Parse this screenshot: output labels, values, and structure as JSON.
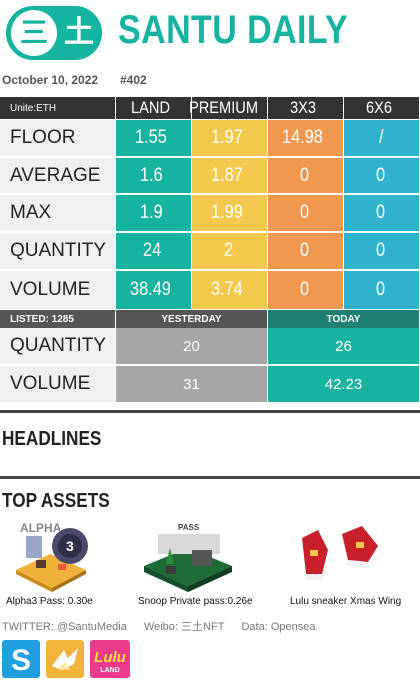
{
  "logo": {
    "char1": "三",
    "char2": "土"
  },
  "brand": "SANTU DAILY",
  "date": "October 10, 2022",
  "issue": "#402",
  "table": {
    "unit_label": "Unite:ETH",
    "columns": [
      "LAND",
      "PREMIUM",
      "3X3",
      "6X6"
    ],
    "rows": [
      {
        "label": "FLOOR",
        "values": [
          "1.55",
          "1.97",
          "14.98",
          "/"
        ]
      },
      {
        "label": "AVERAGE",
        "values": [
          "1.6",
          "1.87",
          "0",
          "0"
        ]
      },
      {
        "label": "MAX",
        "values": [
          "1.9",
          "1.99",
          "0",
          "0"
        ]
      },
      {
        "label": "QUANTITY",
        "values": [
          "24",
          "2",
          "0",
          "0"
        ]
      },
      {
        "label": "VOLUME",
        "values": [
          "38.49",
          "3.74",
          "0",
          "0"
        ]
      }
    ],
    "colors": {
      "land": "#16b3a0",
      "premium": "#f2c94c",
      "x3": "#f0984f",
      "x6": "#30b3cc"
    }
  },
  "listed": {
    "label": "LISTED: 1285",
    "yesterday_label": "YESTERDAY",
    "today_label": "TODAY",
    "rows": [
      {
        "label": "QUANTITY",
        "yesterday": "20",
        "today": "26"
      },
      {
        "label": "VOLUME",
        "yesterday": "31",
        "today": "42.23"
      }
    ]
  },
  "headlines": {
    "title": "HEADLINES"
  },
  "top_assets": {
    "title": "TOP ASSETS",
    "items": [
      {
        "caption": "Alpha3 Pass: 0.30e",
        "image_text": "ALPHA",
        "icon": "alpha3-pass-image"
      },
      {
        "caption": "Snoop Private pass:0.26e",
        "image_text": "PASS",
        "icon": "snoop-pass-image"
      },
      {
        "caption": "Lulu sneaker Xmas Wing",
        "icon": "sneaker-image"
      }
    ]
  },
  "footer": {
    "twitter": "TWITTER: @SantuMedia",
    "weibo": "Weibo: 三土NFT",
    "data": "Data: Opensea"
  },
  "apps": [
    {
      "icon": "sandbox-logo-icon",
      "letter": "S"
    },
    {
      "icon": "bird-logo-icon"
    },
    {
      "icon": "lulu-land-logo-icon",
      "text": "Lulu",
      "sub": "LAND"
    }
  ]
}
